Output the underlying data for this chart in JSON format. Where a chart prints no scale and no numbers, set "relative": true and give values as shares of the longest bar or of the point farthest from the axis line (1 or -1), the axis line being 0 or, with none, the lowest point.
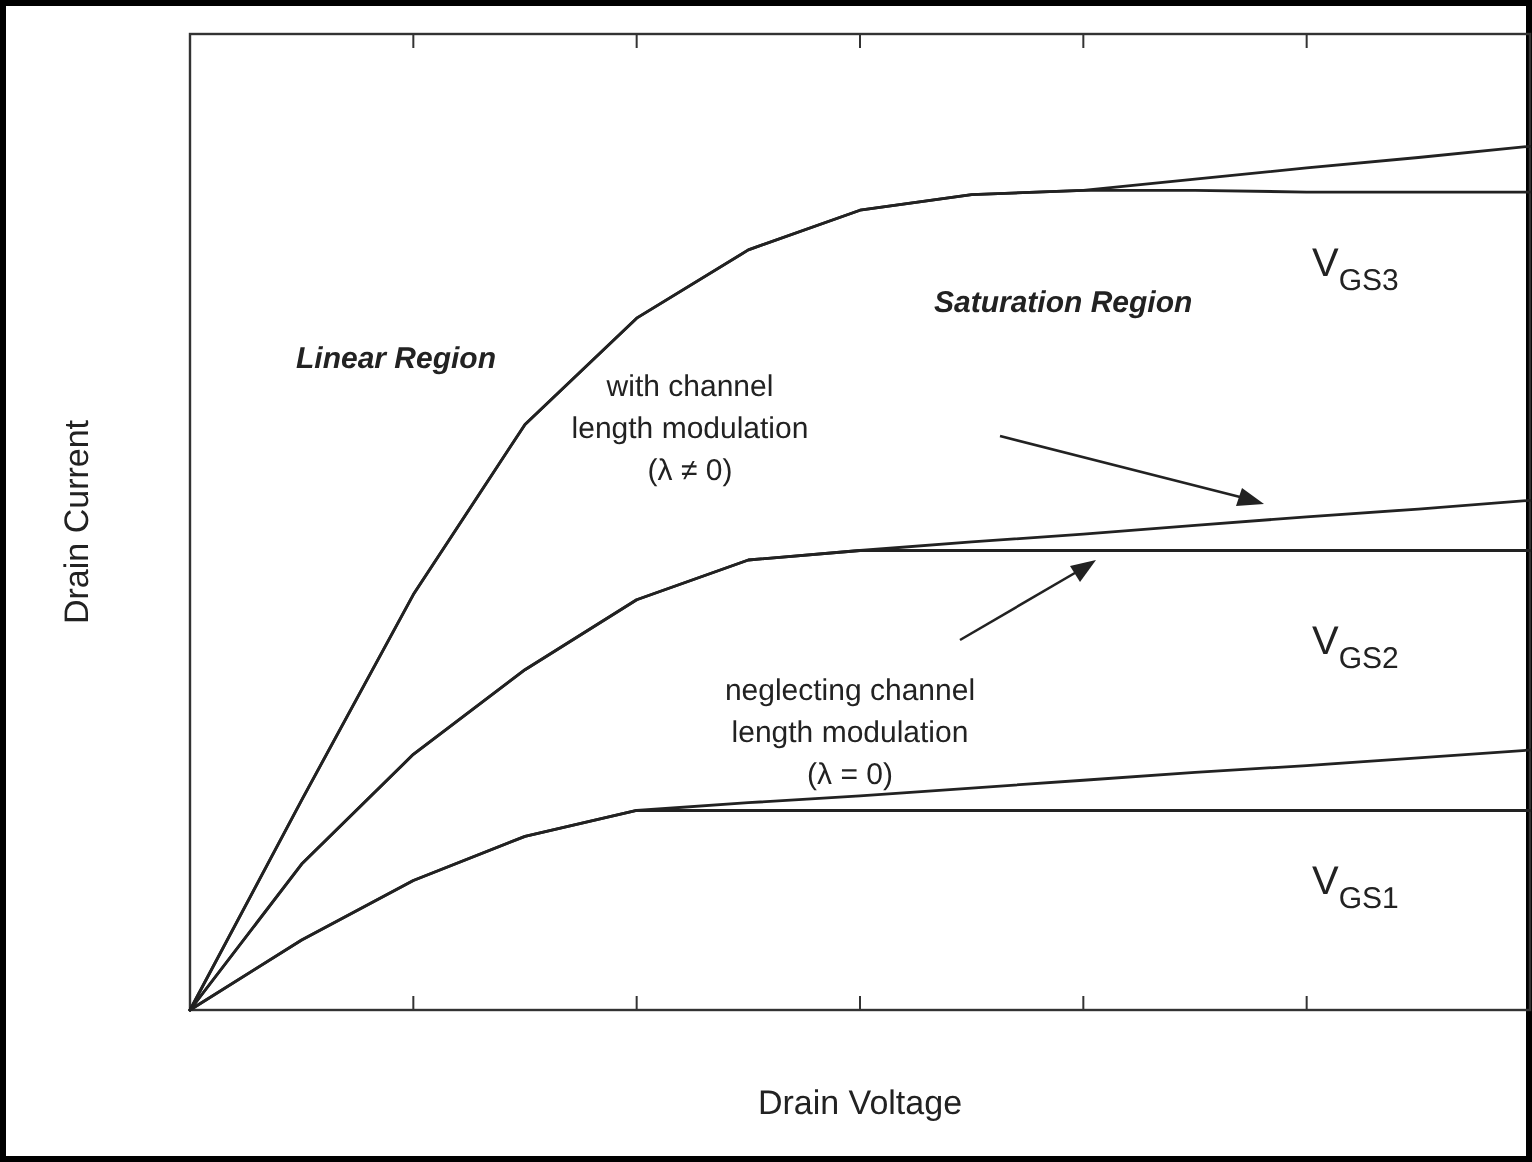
{
  "chart_data": {
    "type": "line",
    "relative": true,
    "xlabel": "Drain Voltage",
    "ylabel": "Drain Current",
    "categories": [
      null,
      null,
      null,
      null,
      null,
      null,
      null,
      null,
      null,
      null,
      null,
      null,
      null
    ],
    "series": [
      {
        "color": "#222222",
        "values": [
          0,
          0.243,
          0.481,
          0.678,
          0.801,
          0.88,
          0.926,
          0.944,
          0.949,
          0.962,
          0.975,
          0.987,
          1.0
        ]
      },
      {
        "color": "#222222",
        "values": [
          0,
          0.243,
          0.481,
          0.678,
          0.801,
          0.88,
          0.926,
          0.944,
          0.949,
          0.949,
          0.947,
          0.947,
          0.947
        ]
      },
      {
        "color": "#222222",
        "values": [
          0,
          0.169,
          0.296,
          0.394,
          0.475,
          0.521,
          0.532,
          0.542,
          0.551,
          0.561,
          0.571,
          0.58,
          0.59
        ]
      },
      {
        "color": "#222222",
        "values": [
          0,
          0.169,
          0.296,
          0.394,
          0.475,
          0.521,
          0.532,
          0.532,
          0.532,
          0.532,
          0.532,
          0.532,
          0.532
        ]
      },
      {
        "color": "#222222",
        "values": [
          0,
          0.081,
          0.15,
          0.201,
          0.231,
          0.24,
          0.248,
          0.257,
          0.266,
          0.275,
          0.283,
          0.292,
          0.301
        ]
      },
      {
        "color": "#222222",
        "values": [
          0,
          0.081,
          0.15,
          0.201,
          0.231,
          0.231,
          0.231,
          0.231,
          0.231,
          0.231,
          0.231,
          0.231,
          0.231
        ]
      }
    ],
    "annotations": [
      "Linear Region",
      "Saturation Region",
      "with channel\nlength modulation\n(λ ≠ 0)",
      "neglecting channel\nlength modulation\n(λ = 0)",
      "V$_{GS3}$",
      "V$_{GS2}$",
      "V$_{GS1}$"
    ]
  }
}
